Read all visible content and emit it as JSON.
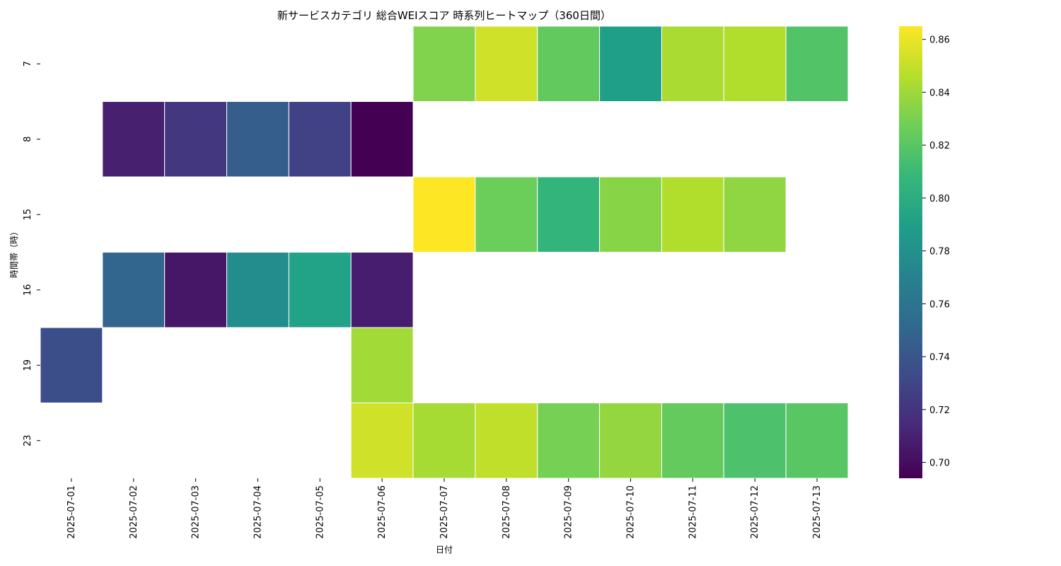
{
  "chart_data": {
    "type": "heatmap",
    "title": "新サービスカテゴリ 総合WEIスコア 時系列ヒートマップ（360日間）",
    "xlabel": "日付",
    "ylabel": "時間帯（時）",
    "x": [
      "2025-07-01",
      "2025-07-02",
      "2025-07-03",
      "2025-07-04",
      "2025-07-05",
      "2025-07-06",
      "2025-07-07",
      "2025-07-08",
      "2025-07-09",
      "2025-07-10",
      "2025-07-11",
      "2025-07-12",
      "2025-07-13"
    ],
    "y": [
      "7",
      "8",
      "15",
      "16",
      "19",
      "23"
    ],
    "values": [
      [
        null,
        null,
        null,
        null,
        null,
        null,
        0.832,
        0.853,
        0.823,
        0.79,
        0.843,
        0.845,
        0.818
      ],
      [
        null,
        0.709,
        0.722,
        0.745,
        0.728,
        0.694,
        null,
        null,
        null,
        null,
        null,
        null,
        null
      ],
      [
        null,
        null,
        null,
        null,
        null,
        null,
        0.865,
        0.826,
        0.806,
        0.834,
        0.845,
        0.836,
        null
      ],
      [
        null,
        0.75,
        0.704,
        0.777,
        0.792,
        0.708,
        null,
        null,
        null,
        null,
        null,
        null,
        null
      ],
      [
        0.735,
        null,
        null,
        null,
        null,
        0.841,
        null,
        null,
        null,
        null,
        null,
        null,
        null
      ],
      [
        null,
        null,
        null,
        null,
        null,
        0.853,
        0.842,
        0.849,
        0.829,
        0.837,
        0.824,
        0.816,
        0.82
      ]
    ],
    "colormap": "viridis",
    "vmin": 0.694,
    "vmax": 0.865,
    "colorbar_ticks": [
      "0.70",
      "0.72",
      "0.74",
      "0.76",
      "0.78",
      "0.80",
      "0.82",
      "0.84",
      "0.86"
    ],
    "colorbar_tick_values": [
      0.7,
      0.72,
      0.74,
      0.76,
      0.78,
      0.8,
      0.82,
      0.84,
      0.86
    ],
    "missing_color": "#ffffff"
  }
}
